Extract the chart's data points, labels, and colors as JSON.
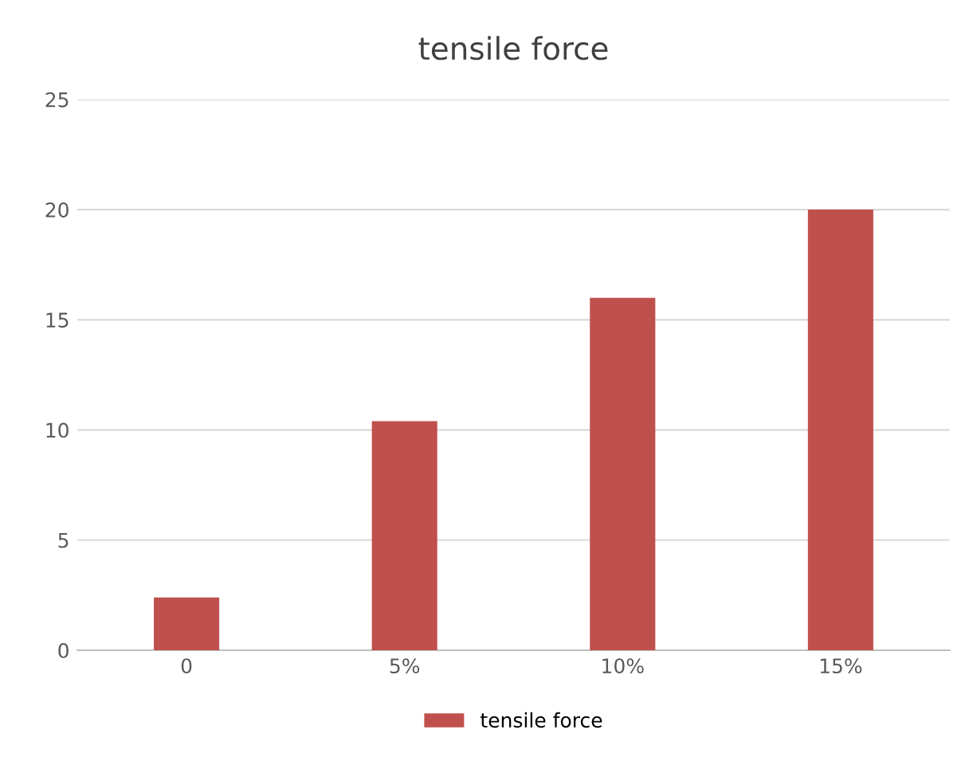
{
  "chart_data": {
    "type": "bar",
    "title": "tensile force",
    "categories": [
      "0",
      "5%",
      "10%",
      "15%"
    ],
    "series": [
      {
        "name": "tensile force",
        "color": "#c0504d",
        "values": [
          2.4,
          10.4,
          16,
          20
        ]
      }
    ],
    "ylim": [
      0,
      25
    ],
    "yticks": [
      0,
      5,
      10,
      15,
      20,
      25
    ],
    "grid": "y",
    "legend": "bottom"
  }
}
